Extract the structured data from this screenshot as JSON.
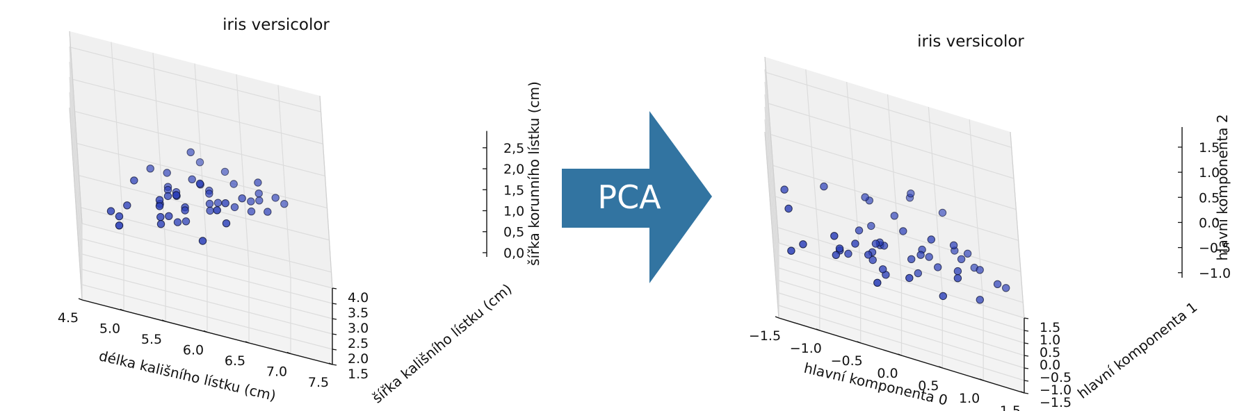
{
  "arrow": {
    "label": "PCA",
    "color": "#3274a1"
  },
  "chart_data": [
    {
      "type": "scatter",
      "projection": "3d",
      "title": "iris versicolor",
      "xlabel": "délka kališního lístku (cm)",
      "ylabel": "šířka kališního lístku (cm)",
      "zlabel": "šířka korunního lístku (cm)",
      "xlim": [
        4.5,
        7.5
      ],
      "ylim": [
        1.5,
        4.0
      ],
      "zlim": [
        0.0,
        2.75
      ],
      "xticks": [
        "4.5",
        "5.0",
        "5.5",
        "6.0",
        "6.5",
        "7.0",
        "7.5"
      ],
      "yticks": [
        "1.5",
        "2.0",
        "2.5",
        "3.0",
        "3.5",
        "4.0"
      ],
      "zticks": [
        "0,0",
        "0,5",
        "1,0",
        "1,5",
        "2,0",
        "2,5"
      ],
      "grid": true,
      "marker_color": "#2b3fb8",
      "points": [
        [
          7.0,
          3.2,
          1.4
        ],
        [
          6.4,
          3.2,
          1.5
        ],
        [
          6.9,
          3.1,
          1.5
        ],
        [
          5.5,
          2.3,
          1.3
        ],
        [
          6.5,
          2.8,
          1.5
        ],
        [
          5.7,
          2.8,
          1.3
        ],
        [
          6.3,
          3.3,
          1.6
        ],
        [
          4.9,
          2.4,
          1.0
        ],
        [
          6.6,
          2.9,
          1.3
        ],
        [
          5.2,
          2.7,
          1.4
        ],
        [
          5.0,
          2.0,
          1.0
        ],
        [
          5.9,
          3.0,
          1.5
        ],
        [
          6.0,
          2.2,
          1.0
        ],
        [
          6.1,
          2.9,
          1.4
        ],
        [
          5.6,
          2.9,
          1.3
        ],
        [
          6.7,
          3.1,
          1.4
        ],
        [
          5.6,
          3.0,
          1.5
        ],
        [
          5.8,
          2.7,
          1.0
        ],
        [
          6.2,
          2.2,
          1.5
        ],
        [
          5.6,
          2.5,
          1.1
        ],
        [
          5.9,
          3.2,
          1.8
        ],
        [
          6.1,
          2.8,
          1.3
        ],
        [
          6.3,
          2.5,
          1.5
        ],
        [
          6.1,
          2.8,
          1.2
        ],
        [
          6.4,
          2.9,
          1.3
        ],
        [
          6.6,
          3.0,
          1.4
        ],
        [
          6.8,
          2.8,
          1.4
        ],
        [
          6.7,
          3.0,
          1.7
        ],
        [
          6.0,
          2.9,
          1.5
        ],
        [
          5.7,
          2.6,
          1.0
        ],
        [
          5.5,
          2.4,
          1.1
        ],
        [
          5.5,
          2.4,
          1.0
        ],
        [
          5.8,
          2.7,
          1.2
        ],
        [
          6.0,
          2.7,
          1.6
        ],
        [
          5.4,
          3.0,
          1.5
        ],
        [
          6.0,
          3.4,
          1.6
        ],
        [
          6.7,
          3.1,
          1.5
        ],
        [
          6.3,
          2.3,
          1.3
        ],
        [
          5.6,
          3.0,
          1.3
        ],
        [
          5.5,
          2.5,
          1.3
        ],
        [
          5.5,
          2.6,
          1.2
        ],
        [
          6.1,
          3.0,
          1.4
        ],
        [
          5.8,
          2.6,
          1.2
        ],
        [
          5.0,
          2.3,
          1.0
        ],
        [
          5.6,
          2.7,
          1.3
        ],
        [
          5.7,
          3.0,
          1.2
        ],
        [
          5.7,
          2.9,
          1.3
        ],
        [
          6.2,
          2.9,
          1.3
        ],
        [
          5.1,
          2.5,
          1.1
        ],
        [
          5.7,
          2.8,
          1.3
        ]
      ]
    },
    {
      "type": "scatter",
      "projection": "3d",
      "title": "iris versicolor",
      "xlabel": "hlavní komponenta 0",
      "ylabel": "hlavní komponenta 1",
      "zlabel": "hlavní komponenta 2",
      "xlim": [
        -1.5,
        1.5
      ],
      "ylim": [
        -1.5,
        1.5
      ],
      "zlim": [
        -1.25,
        1.6
      ],
      "xticks": [
        "−1.5",
        "−1.0",
        "−0.5",
        "0.0",
        "0.5",
        "1.0",
        "1.5"
      ],
      "yticks": [
        "−1.5",
        "−1.0",
        "−0.5",
        "0.0",
        "0.5",
        "1.0",
        "1.5"
      ],
      "zticks": [
        "−1.0",
        "−0.5",
        "0.0",
        "0.5",
        "1.0",
        "1.5"
      ],
      "grid": true,
      "marker_color": "#2b3fb8",
      "points": [
        [
          1.33,
          0.18,
          -0.35
        ],
        [
          0.72,
          0.28,
          -0.05
        ],
        [
          1.23,
          0.1,
          -0.3
        ],
        [
          -0.75,
          -0.6,
          -0.05
        ],
        [
          0.75,
          -0.12,
          -0.2
        ],
        [
          -0.18,
          -0.32,
          -0.45
        ],
        [
          0.6,
          0.5,
          0.4
        ],
        [
          -1.34,
          -0.2,
          0.28
        ],
        [
          0.72,
          0.05,
          0.12
        ],
        [
          -0.85,
          0.1,
          0.4
        ],
        [
          -1.3,
          -0.7,
          -0.45
        ],
        [
          0.0,
          0.3,
          0.2
        ],
        [
          -0.25,
          -0.8,
          -0.5
        ],
        [
          0.32,
          0.05,
          -0.1
        ],
        [
          -0.45,
          0.05,
          -0.1
        ],
        [
          0.88,
          0.32,
          -0.05
        ],
        [
          -0.3,
          0.35,
          0.3
        ],
        [
          -0.3,
          -0.2,
          -0.4
        ],
        [
          0.55,
          -0.4,
          -0.55
        ],
        [
          -0.7,
          -0.35,
          -0.35
        ],
        [
          0.22,
          0.5,
          0.55
        ],
        [
          0.18,
          -0.08,
          -0.25
        ],
        [
          0.75,
          -0.4,
          -0.2
        ],
        [
          0.25,
          -0.05,
          -0.45
        ],
        [
          0.5,
          0.05,
          -0.3
        ],
        [
          0.8,
          0.15,
          -0.1
        ],
        [
          1.0,
          -0.1,
          -0.55
        ],
        [
          1.02,
          0.2,
          -0.2
        ],
        [
          0.1,
          0.05,
          0.1
        ],
        [
          -0.6,
          -0.25,
          -0.4
        ],
        [
          -0.7,
          -0.4,
          -0.3
        ],
        [
          -0.75,
          -0.45,
          -0.4
        ],
        [
          -0.3,
          -0.15,
          -0.3
        ],
        [
          0.45,
          -0.2,
          0.2
        ],
        [
          -0.35,
          0.3,
          0.35
        ],
        [
          0.2,
          0.7,
          0.4
        ],
        [
          0.95,
          0.35,
          -0.25
        ],
        [
          0.15,
          -0.6,
          -0.35
        ],
        [
          -0.3,
          0.25,
          -0.05
        ],
        [
          -0.5,
          -0.4,
          -0.15
        ],
        [
          -0.35,
          -0.3,
          -0.3
        ],
        [
          0.4,
          0.1,
          -0.2
        ],
        [
          -0.15,
          -0.25,
          -0.55
        ],
        [
          -1.15,
          -0.55,
          -0.35
        ],
        [
          -0.25,
          -0.15,
          -0.15
        ],
        [
          -0.2,
          0.1,
          -0.25
        ],
        [
          -0.15,
          0.0,
          -0.2
        ],
        [
          0.3,
          -0.05,
          -0.15
        ],
        [
          -1.3,
          -0.45,
          0.1
        ],
        [
          -0.2,
          -0.05,
          -0.15
        ]
      ]
    }
  ]
}
